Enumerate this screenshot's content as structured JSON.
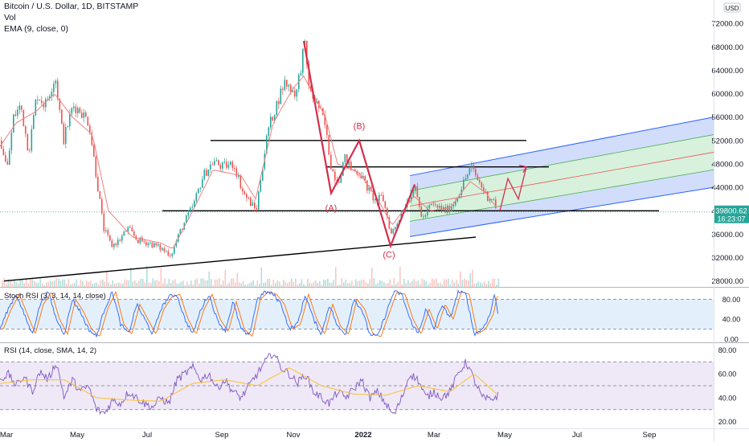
{
  "chart_data": {
    "type": "candlestick",
    "symbol_line": "Bitcoin / U.S. Dollar, 1D, BITSTAMP",
    "volume_label": "Vol",
    "ema_label": "EMA (9, close, 0)",
    "currency": "USD",
    "price_axis_ticks": [
      "72000.00",
      "68000.00",
      "64000.00",
      "60000.00",
      "56000.00",
      "52000.00",
      "48000.00",
      "44000.00",
      "40000.00",
      "36000.00",
      "32000.00",
      "28000.00"
    ],
    "price_axis_values": [
      72000,
      68000,
      64000,
      60000,
      56000,
      52000,
      48000,
      44000,
      40000,
      36000,
      32000,
      28000
    ],
    "price_ylim": [
      27000,
      76000
    ],
    "last_price": "39800.62",
    "last_price_value": 39800.62,
    "countdown": "16:23:07",
    "time_axis_labels": [
      "Mar",
      "May",
      "Jul",
      "Sep",
      "Nov",
      "2022",
      "Mar",
      "May",
      "Jul",
      "Sep"
    ],
    "price_path": [
      [
        0,
        52000
      ],
      [
        8,
        47000
      ],
      [
        16,
        56000
      ],
      [
        25,
        58000
      ],
      [
        35,
        50000
      ],
      [
        45,
        60000
      ],
      [
        55,
        58000
      ],
      [
        68,
        63000
      ],
      [
        78,
        52000
      ],
      [
        90,
        58000
      ],
      [
        100,
        57000
      ],
      [
        110,
        55000
      ],
      [
        120,
        45000
      ],
      [
        128,
        37000
      ],
      [
        138,
        34000
      ],
      [
        148,
        35000
      ],
      [
        158,
        37000
      ],
      [
        170,
        35000
      ],
      [
        185,
        34500
      ],
      [
        200,
        33500
      ],
      [
        212,
        32500
      ],
      [
        225,
        37000
      ],
      [
        240,
        41000
      ],
      [
        252,
        46000
      ],
      [
        265,
        48500
      ],
      [
        275,
        47500
      ],
      [
        290,
        48000
      ],
      [
        302,
        43000
      ],
      [
        318,
        40000
      ],
      [
        325,
        47000
      ],
      [
        333,
        54000
      ],
      [
        343,
        58000
      ],
      [
        353,
        62000
      ],
      [
        368,
        60000
      ],
      [
        378,
        68500
      ],
      [
        385,
        60000
      ],
      [
        395,
        58000
      ],
      [
        403,
        55000
      ],
      [
        412,
        47000
      ],
      [
        420,
        45000
      ],
      [
        428,
        49000
      ],
      [
        437,
        47000
      ],
      [
        447,
        46500
      ],
      [
        456,
        44000
      ],
      [
        467,
        41500
      ],
      [
        475,
        42500
      ],
      [
        486,
        36000
      ],
      [
        495,
        38500
      ],
      [
        505,
        41500
      ],
      [
        515,
        44000
      ],
      [
        525,
        38500
      ],
      [
        535,
        41000
      ],
      [
        545,
        40500
      ],
      [
        555,
        40000
      ],
      [
        565,
        41500
      ],
      [
        575,
        44500
      ],
      [
        585,
        47500
      ],
      [
        595,
        45000
      ],
      [
        605,
        42500
      ],
      [
        613,
        42000
      ],
      [
        618,
        39800
      ]
    ],
    "ema_path": [
      [
        0,
        51000
      ],
      [
        20,
        55000
      ],
      [
        45,
        57000
      ],
      [
        68,
        60000
      ],
      [
        90,
        56000
      ],
      [
        115,
        53000
      ],
      [
        135,
        40000
      ],
      [
        165,
        35500
      ],
      [
        200,
        34500
      ],
      [
        215,
        33500
      ],
      [
        240,
        40000
      ],
      [
        265,
        47000
      ],
      [
        300,
        46000
      ],
      [
        318,
        42000
      ],
      [
        340,
        55000
      ],
      [
        365,
        61000
      ],
      [
        378,
        63000
      ],
      [
        405,
        56000
      ],
      [
        420,
        48000
      ],
      [
        447,
        46500
      ],
      [
        470,
        42000
      ],
      [
        488,
        37500
      ],
      [
        515,
        42500
      ],
      [
        535,
        40000
      ],
      [
        560,
        40500
      ],
      [
        585,
        45000
      ],
      [
        605,
        43000
      ],
      [
        618,
        40500
      ]
    ],
    "elliott_path": [
      [
        378,
        69000
      ],
      [
        412,
        43000
      ],
      [
        447,
        52000
      ],
      [
        486,
        34000
      ],
      [
        516,
        44500
      ]
    ],
    "elliott_labels": [
      {
        "text": "(A)",
        "x": 412,
        "y": 40000
      },
      {
        "text": "(B)",
        "x": 447,
        "y": 54000
      },
      {
        "text": "(C)",
        "x": 484,
        "y": 32000
      }
    ],
    "horizontal_levels": [
      {
        "y": 52000,
        "x1": 262,
        "x2": 655
      },
      {
        "y": 47500,
        "x1": 405,
        "x2": 683
      },
      {
        "y": 40000,
        "x1": 202,
        "x2": 820
      }
    ],
    "trendline": {
      "points": [
        [
          5,
          28000
        ],
        [
          592,
          35500
        ]
      ]
    },
    "channel": {
      "x1": 510,
      "x2": 888,
      "outer_upper": [
        46000,
        56000
      ],
      "inner_upper": [
        43400,
        53000
      ],
      "median": [
        40800,
        50000
      ],
      "inner_lower": [
        38200,
        47000
      ],
      "outer_lower": [
        35600,
        44000
      ]
    },
    "projection_path": [
      [
        622,
        40000
      ],
      [
        632,
        45500
      ],
      [
        645,
        42000
      ],
      [
        655,
        47500
      ]
    ],
    "volume_bars_hint": "small bars along bottom of price pane",
    "stoch_rsi": {
      "label": "Stoch RSI (3, 3, 14, 14, close)",
      "ticks": [
        "80.00",
        "40.00",
        "0.00"
      ],
      "tick_values": [
        80,
        40,
        0
      ],
      "ylim": [
        -5,
        100
      ],
      "k_series": [
        [
          0,
          20
        ],
        [
          10,
          60
        ],
        [
          20,
          90
        ],
        [
          30,
          50
        ],
        [
          40,
          10
        ],
        [
          50,
          70
        ],
        [
          60,
          95
        ],
        [
          70,
          40
        ],
        [
          80,
          10
        ],
        [
          90,
          80
        ],
        [
          100,
          55
        ],
        [
          110,
          20
        ],
        [
          120,
          5
        ],
        [
          130,
          60
        ],
        [
          140,
          95
        ],
        [
          150,
          30
        ],
        [
          160,
          10
        ],
        [
          170,
          70
        ],
        [
          180,
          40
        ],
        [
          190,
          10
        ],
        [
          200,
          60
        ],
        [
          210,
          85
        ],
        [
          220,
          90
        ],
        [
          230,
          40
        ],
        [
          240,
          10
        ],
        [
          250,
          60
        ],
        [
          260,
          90
        ],
        [
          270,
          40
        ],
        [
          280,
          15
        ],
        [
          290,
          75
        ],
        [
          300,
          20
        ],
        [
          310,
          5
        ],
        [
          320,
          80
        ],
        [
          330,
          95
        ],
        [
          340,
          90
        ],
        [
          350,
          70
        ],
        [
          360,
          20
        ],
        [
          370,
          30
        ],
        [
          380,
          90
        ],
        [
          390,
          40
        ],
        [
          400,
          10
        ],
        [
          410,
          70
        ],
        [
          420,
          25
        ],
        [
          430,
          10
        ],
        [
          440,
          80
        ],
        [
          450,
          60
        ],
        [
          460,
          10
        ],
        [
          470,
          5
        ],
        [
          480,
          50
        ],
        [
          490,
          95
        ],
        [
          500,
          90
        ],
        [
          510,
          40
        ],
        [
          520,
          10
        ],
        [
          530,
          60
        ],
        [
          540,
          20
        ],
        [
          550,
          70
        ],
        [
          560,
          40
        ],
        [
          570,
          95
        ],
        [
          580,
          90
        ],
        [
          590,
          10
        ],
        [
          600,
          20
        ],
        [
          610,
          50
        ],
        [
          615,
          90
        ],
        [
          620,
          50
        ]
      ]
    },
    "rsi": {
      "label": "RSI (14, close, SMA, 14, 2)",
      "ticks": [
        "80.00",
        "60.00",
        "40.00",
        "20.00"
      ],
      "tick_values": [
        80,
        60,
        40,
        20
      ],
      "ylim": [
        15,
        85
      ],
      "series": [
        [
          0,
          55
        ],
        [
          10,
          60
        ],
        [
          20,
          50
        ],
        [
          30,
          58
        ],
        [
          40,
          45
        ],
        [
          50,
          62
        ],
        [
          60,
          55
        ],
        [
          70,
          70
        ],
        [
          80,
          40
        ],
        [
          90,
          55
        ],
        [
          100,
          45
        ],
        [
          110,
          50
        ],
        [
          120,
          30
        ],
        [
          130,
          27
        ],
        [
          140,
          38
        ],
        [
          150,
          35
        ],
        [
          160,
          45
        ],
        [
          170,
          40
        ],
        [
          180,
          35
        ],
        [
          190,
          32
        ],
        [
          200,
          40
        ],
        [
          210,
          35
        ],
        [
          220,
          55
        ],
        [
          230,
          60
        ],
        [
          240,
          65
        ],
        [
          250,
          55
        ],
        [
          260,
          60
        ],
        [
          270,
          48
        ],
        [
          280,
          55
        ],
        [
          290,
          45
        ],
        [
          300,
          40
        ],
        [
          310,
          50
        ],
        [
          320,
          60
        ],
        [
          330,
          70
        ],
        [
          340,
          78
        ],
        [
          350,
          65
        ],
        [
          360,
          60
        ],
        [
          370,
          52
        ],
        [
          380,
          60
        ],
        [
          390,
          45
        ],
        [
          400,
          40
        ],
        [
          410,
          35
        ],
        [
          420,
          45
        ],
        [
          430,
          40
        ],
        [
          440,
          47
        ],
        [
          450,
          55
        ],
        [
          460,
          40
        ],
        [
          470,
          45
        ],
        [
          480,
          35
        ],
        [
          490,
          25
        ],
        [
          500,
          40
        ],
        [
          510,
          60
        ],
        [
          520,
          55
        ],
        [
          530,
          40
        ],
        [
          540,
          45
        ],
        [
          550,
          40
        ],
        [
          560,
          45
        ],
        [
          570,
          60
        ],
        [
          580,
          70
        ],
        [
          590,
          55
        ],
        [
          600,
          40
        ],
        [
          610,
          38
        ],
        [
          620,
          42
        ]
      ],
      "sma": [
        [
          0,
          52
        ],
        [
          40,
          55
        ],
        [
          80,
          55
        ],
        [
          120,
          40
        ],
        [
          160,
          38
        ],
        [
          200,
          37
        ],
        [
          240,
          52
        ],
        [
          280,
          55
        ],
        [
          320,
          50
        ],
        [
          360,
          65
        ],
        [
          400,
          50
        ],
        [
          440,
          43
        ],
        [
          480,
          42
        ],
        [
          520,
          50
        ],
        [
          560,
          45
        ],
        [
          590,
          60
        ],
        [
          620,
          42
        ]
      ]
    },
    "colors": {
      "candle_up": "#26a69a",
      "candle_down": "#ef5350",
      "elliott": "#d32f4c",
      "levels": "#000000",
      "channel_outer": "#2962ff",
      "channel_outer_fill": "#c3d1fa",
      "channel_inner_fill": "#c9ecd2",
      "channel_median": "#ef5350",
      "price_line": "#8a8a8a",
      "stoch_k": "#2962ff",
      "stoch_d": "#ff6d00",
      "stoch_band": "#e3f0fc",
      "rsi_line": "#7e57c2",
      "rsi_sma": "#fbc02d",
      "rsi_band": "#efe8f7",
      "last_price_tag": "#26a69a"
    }
  }
}
